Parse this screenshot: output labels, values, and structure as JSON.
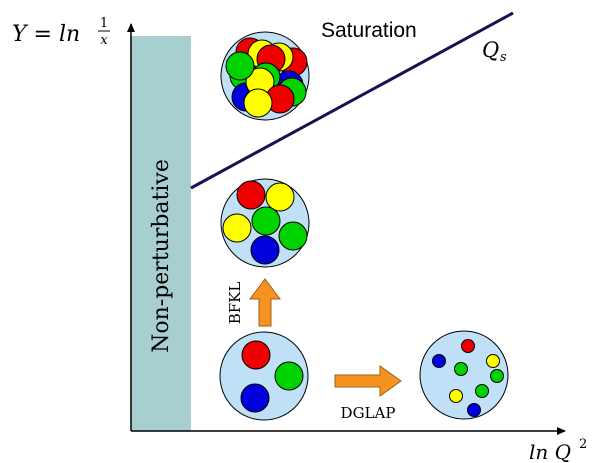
{
  "axes": {
    "y_label_prefix": "Y = ln",
    "y_label_num": "1",
    "y_label_den": "x",
    "x_label_text": "ln Q",
    "x_label_sup": "2"
  },
  "regions": {
    "non_perturbative": "Non-perturbative",
    "saturation": "Saturation",
    "saturation_line": "Q",
    "saturation_line_sub": "s"
  },
  "arrows": {
    "bfkl": "BFKL",
    "dglap": "DGLAP"
  },
  "colors": {
    "band": "#a7cfcf",
    "disk": "#bfe0f7",
    "line": "#141452",
    "arrow": "#f5931e",
    "red": "#ee0000",
    "green": "#00d200",
    "blue": "#0000dd",
    "yellow": "#ffff00"
  }
}
